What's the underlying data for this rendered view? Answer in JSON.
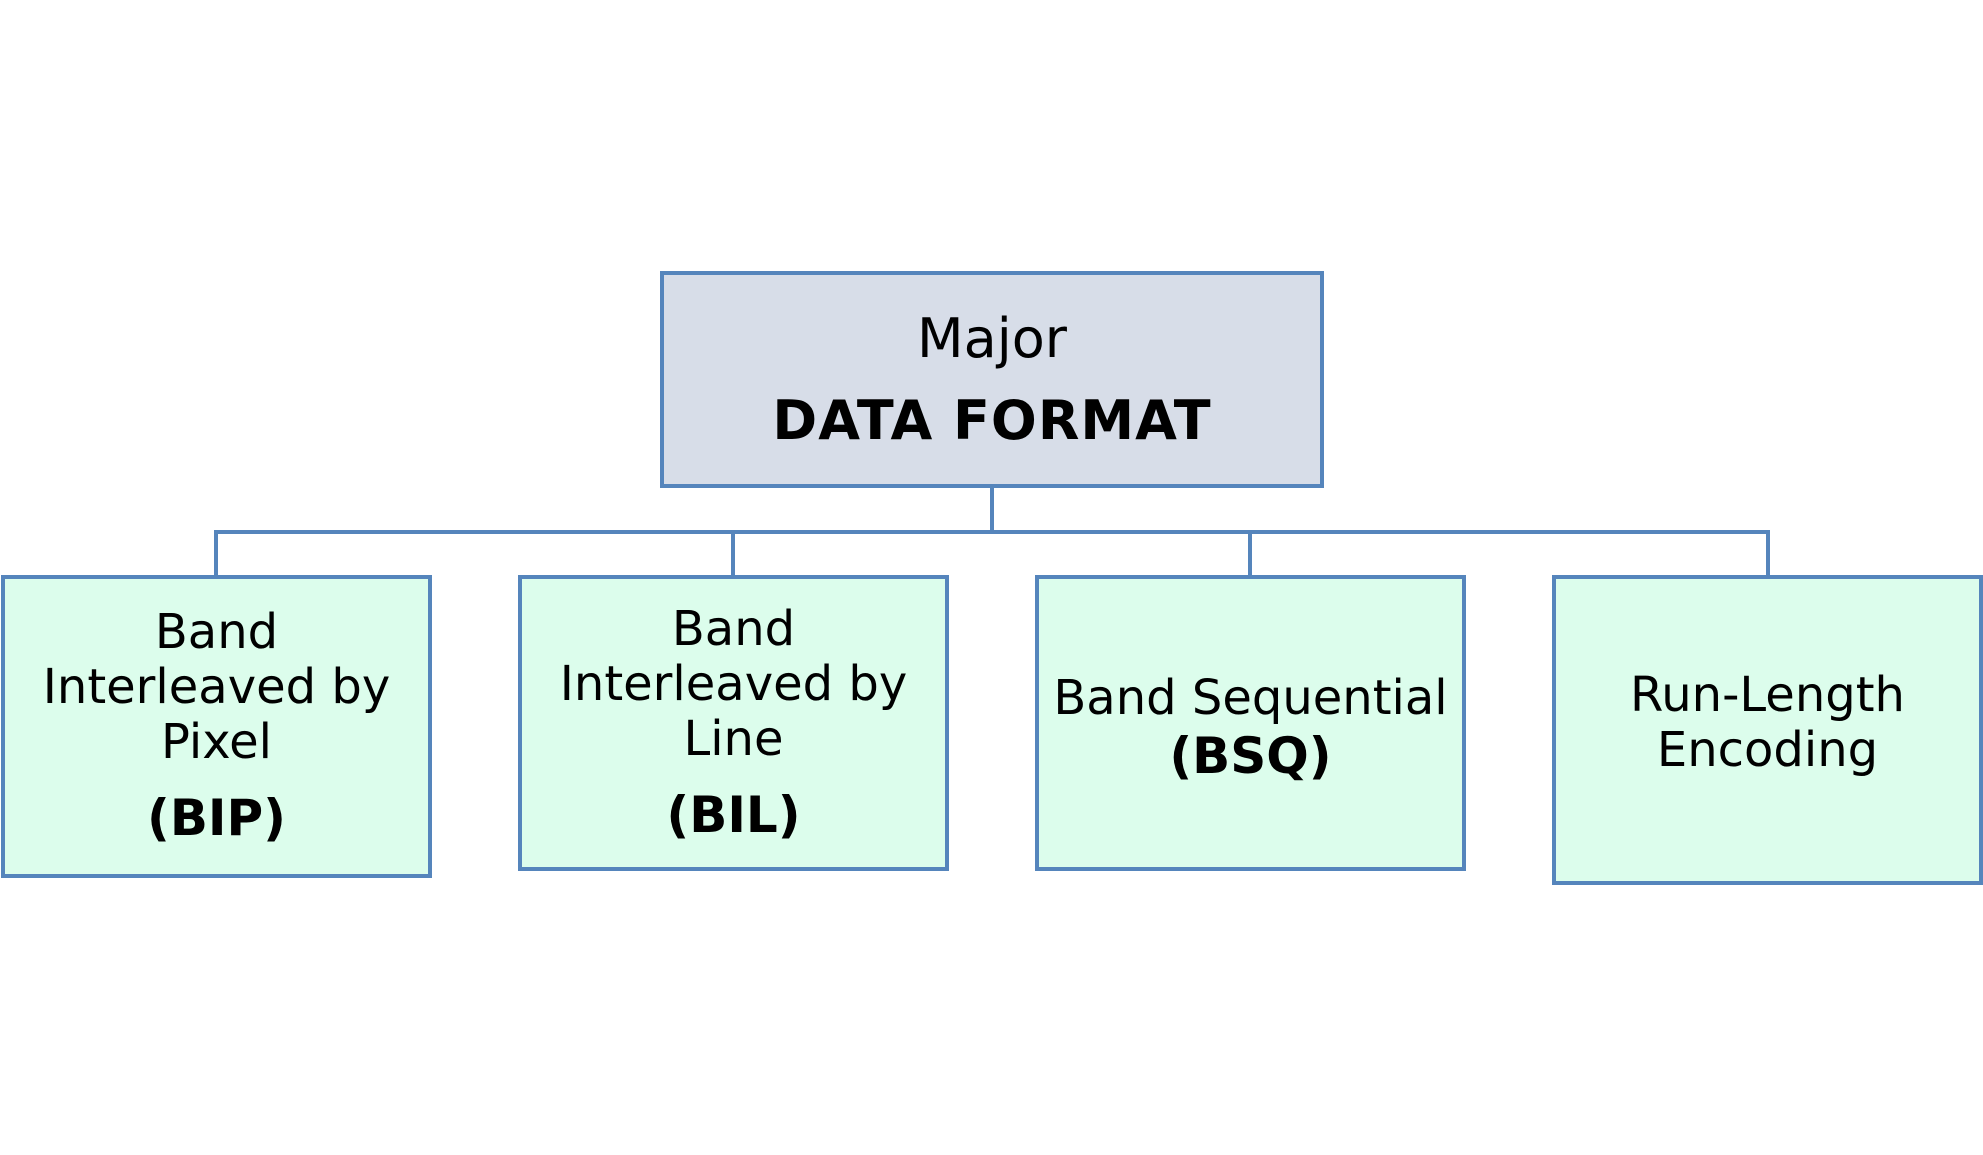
{
  "diagram": {
    "root": {
      "line1": "Major",
      "line2": "DATA FORMAT"
    },
    "children": [
      {
        "label": "Band\nInterleaved by\nPixel",
        "abbr": "(BIP)"
      },
      {
        "label": "Band\nInterleaved by\nLine",
        "abbr": "(BIL)"
      },
      {
        "label": "Band Sequential",
        "abbr": "(BSQ)"
      },
      {
        "label": "Run-Length\nEncoding",
        "abbr": ""
      }
    ]
  },
  "colors": {
    "border": "#5585bc",
    "root_fill": "#d7dde8",
    "child_fill": "#dcfdec",
    "connector": "#5585bc"
  }
}
